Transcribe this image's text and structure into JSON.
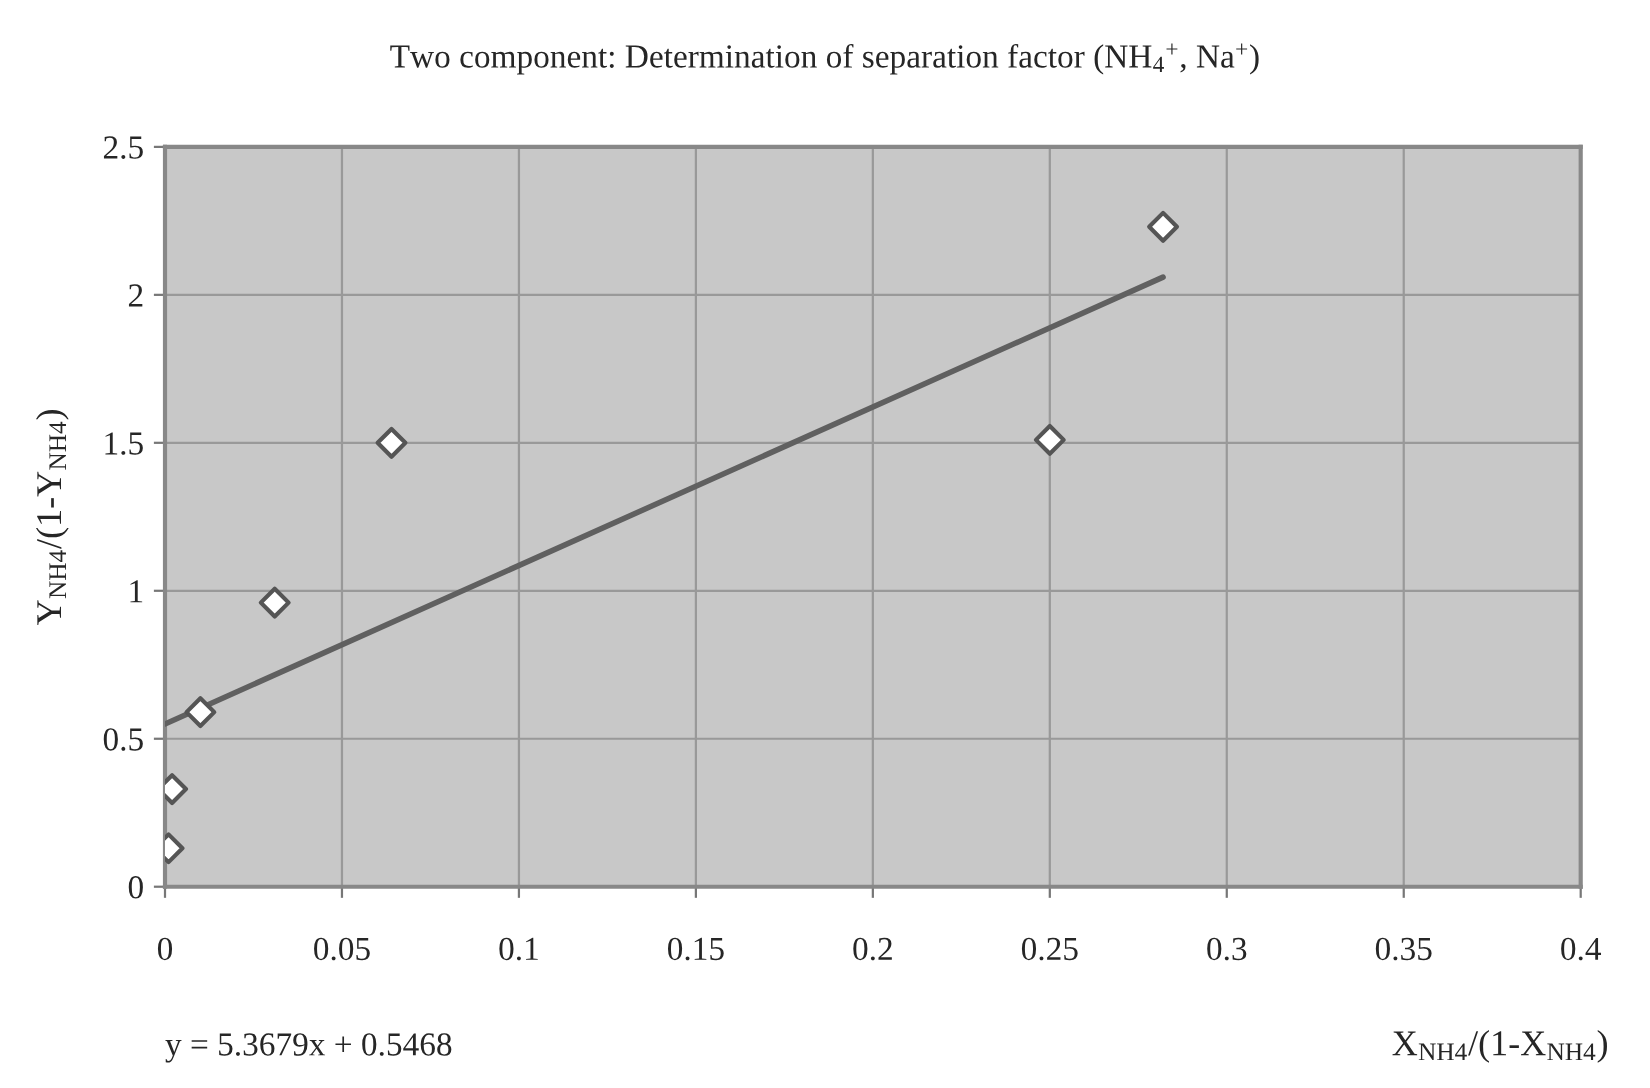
{
  "chart_data": {
    "type": "scatter",
    "title": "Two component: Determination of separation factor (NH$_{4}$$^{+}$, Na$^{+}$)",
    "xlabel": "X$_{NH4}$/(1-X$_{NH4}$)",
    "ylabel": "Y$_{NH4}$/(1-Y$_{NH4}$)",
    "annotations": [
      "y = 5.3679x + 0.5468"
    ],
    "series": [
      {
        "color": "#ffffff",
        "x": [
          0.001,
          0.002,
          0.01,
          0.031,
          0.064,
          0.25,
          0.282
        ],
        "values": [
          0.13,
          0.33,
          0.59,
          0.96,
          1.5,
          1.51,
          2.23
        ]
      },
      {
        "type": "line",
        "marker": "none",
        "color": "#606060",
        "x": [
          0,
          0.282
        ],
        "values": [
          0.55,
          2.06
        ]
      }
    ],
    "marker": "diamond",
    "xlim": [
      0,
      0.4
    ],
    "xticks": [
      0,
      0.05,
      0.1,
      0.15,
      0.2,
      0.25,
      0.3,
      0.35,
      0.4
    ],
    "ylim": [
      0,
      2.5
    ],
    "yticks": [
      0,
      0.5,
      1,
      1.5,
      2,
      2.5
    ],
    "grid": true,
    "legend": false
  }
}
